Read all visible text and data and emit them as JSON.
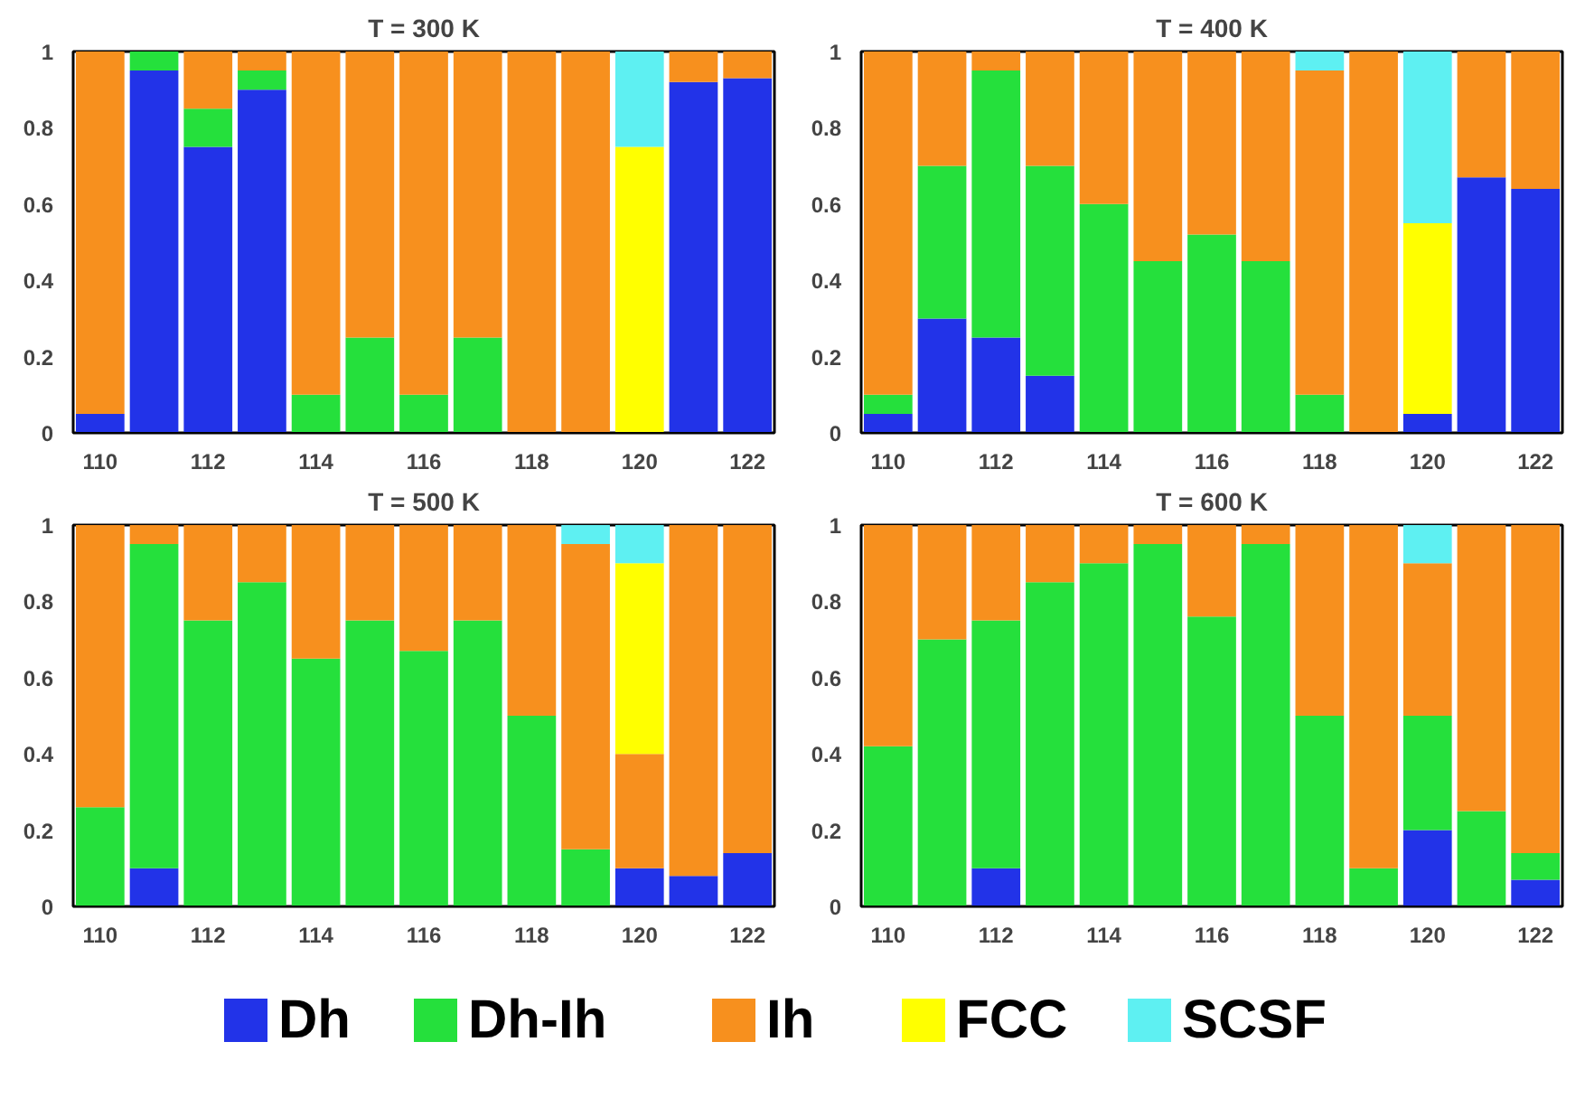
{
  "chart_data": [
    {
      "type": "bar",
      "stacked": true,
      "title": "T = 300 K",
      "legend": "bottom",
      "categories": [
        "110",
        null,
        "112",
        null,
        "114",
        null,
        "116",
        null,
        "118",
        null,
        "120",
        null,
        "122"
      ],
      "ylim": [
        0,
        1
      ],
      "yticks": [
        0,
        0.2,
        0.4,
        0.6,
        0.8,
        1
      ],
      "series": [
        {
          "name": "Dh",
          "color": "#2233e8",
          "values": [
            0.05,
            0.95,
            0.75,
            0.9,
            0,
            0,
            0,
            0,
            0,
            0,
            0,
            0.92,
            0.93
          ]
        },
        {
          "name": "Dh-Ih",
          "color": "#25e03c",
          "values": [
            0,
            0.05,
            0.1,
            0.05,
            0.1,
            0.25,
            0.1,
            0.25,
            0,
            0,
            0,
            0,
            0
          ]
        },
        {
          "name": "Ih",
          "color": "#f7901e",
          "values": [
            0.95,
            0,
            0.15,
            0.05,
            0.9,
            0.75,
            0.9,
            0.75,
            1,
            1,
            0,
            0.08,
            0.07
          ]
        },
        {
          "name": "FCC",
          "color": "#ffff00",
          "values": [
            0,
            0,
            0,
            0,
            0,
            0,
            0,
            0,
            0,
            0,
            0.75,
            0,
            0
          ]
        },
        {
          "name": "SCSF",
          "color": "#5ef0f2",
          "values": [
            0,
            0,
            0,
            0,
            0,
            0,
            0,
            0,
            0,
            0,
            0.25,
            0,
            0
          ]
        }
      ]
    },
    {
      "type": "bar",
      "stacked": true,
      "title": "T = 400 K",
      "categories": [
        "110",
        null,
        "112",
        null,
        "114",
        null,
        "116",
        null,
        "118",
        null,
        "120",
        null,
        "122"
      ],
      "ylim": [
        0,
        1
      ],
      "yticks": [
        0,
        0.2,
        0.4,
        0.6,
        0.8,
        1
      ],
      "series": [
        {
          "color": "#2233e8",
          "values": [
            0.05,
            0.3,
            0.25,
            0.15,
            0,
            0,
            0,
            0,
            0,
            0,
            0.05,
            0.67,
            0.64
          ]
        },
        {
          "color": "#25e03c",
          "values": [
            0.05,
            0.4,
            0.7,
            0.55,
            0.6,
            0.45,
            0.52,
            0.45,
            0.1,
            0,
            0,
            0,
            0
          ]
        },
        {
          "color": "#f7901e",
          "values": [
            0.9,
            0.3,
            0.05,
            0.3,
            0.4,
            0.55,
            0.48,
            0.55,
            0.85,
            1,
            0,
            0.33,
            0.36
          ]
        },
        {
          "color": "#ffff00",
          "values": [
            0,
            0,
            0,
            0,
            0,
            0,
            0,
            0,
            0,
            0,
            0.5,
            0,
            0
          ]
        },
        {
          "color": "#5ef0f2",
          "values": [
            0,
            0,
            0,
            0,
            0,
            0,
            0,
            0,
            0.05,
            0,
            0.45,
            0,
            0
          ]
        }
      ]
    },
    {
      "type": "bar",
      "stacked": true,
      "title": "T = 500 K",
      "categories": [
        "110",
        null,
        "112",
        null,
        "114",
        null,
        "116",
        null,
        "118",
        null,
        "120",
        null,
        "122"
      ],
      "ylim": [
        0,
        1
      ],
      "yticks": [
        0,
        0.2,
        0.4,
        0.6,
        0.8,
        1
      ],
      "series": [
        {
          "color": "#2233e8",
          "values": [
            0,
            0.1,
            0,
            0,
            0,
            0,
            0,
            0,
            0,
            0,
            0.1,
            0.08,
            0.14
          ]
        },
        {
          "color": "#25e03c",
          "values": [
            0.26,
            0.85,
            0.75,
            0.85,
            0.65,
            0.75,
            0.67,
            0.75,
            0.5,
            0.15,
            0,
            0,
            0
          ]
        },
        {
          "color": "#f7901e",
          "values": [
            0.74,
            0.05,
            0.25,
            0.15,
            0.35,
            0.25,
            0.33,
            0.25,
            0.5,
            0.8,
            0.3,
            0.92,
            0.86
          ]
        },
        {
          "color": "#ffff00",
          "values": [
            0,
            0,
            0,
            0,
            0,
            0,
            0,
            0,
            0,
            0,
            0.5,
            0,
            0
          ]
        },
        {
          "color": "#5ef0f2",
          "values": [
            0,
            0,
            0,
            0,
            0,
            0,
            0,
            0,
            0,
            0.05,
            0.1,
            0,
            0
          ]
        }
      ]
    },
    {
      "type": "bar",
      "stacked": true,
      "title": "T = 600 K",
      "categories": [
        "110",
        null,
        "112",
        null,
        "114",
        null,
        "116",
        null,
        "118",
        null,
        "120",
        null,
        "122"
      ],
      "ylim": [
        0,
        1
      ],
      "yticks": [
        0,
        0.2,
        0.4,
        0.6,
        0.8,
        1
      ],
      "series": [
        {
          "color": "#2233e8",
          "values": [
            0,
            0,
            0.1,
            0,
            0,
            0,
            0,
            0,
            0,
            0,
            0.2,
            0,
            0.07
          ]
        },
        {
          "color": "#25e03c",
          "values": [
            0.42,
            0.7,
            0.65,
            0.85,
            0.9,
            0.95,
            0.76,
            0.95,
            0.5,
            0.1,
            0.3,
            0.25,
            0.07
          ]
        },
        {
          "color": "#f7901e",
          "values": [
            0.58,
            0.3,
            0.25,
            0.15,
            0.1,
            0.05,
            0.24,
            0.05,
            0.5,
            0.9,
            0.4,
            0.75,
            0.86
          ]
        },
        {
          "color": "#5ef0f2",
          "values": [
            0,
            0,
            0,
            0,
            0,
            0,
            0,
            0,
            0,
            0,
            0.1,
            0,
            0
          ]
        }
      ]
    }
  ]
}
